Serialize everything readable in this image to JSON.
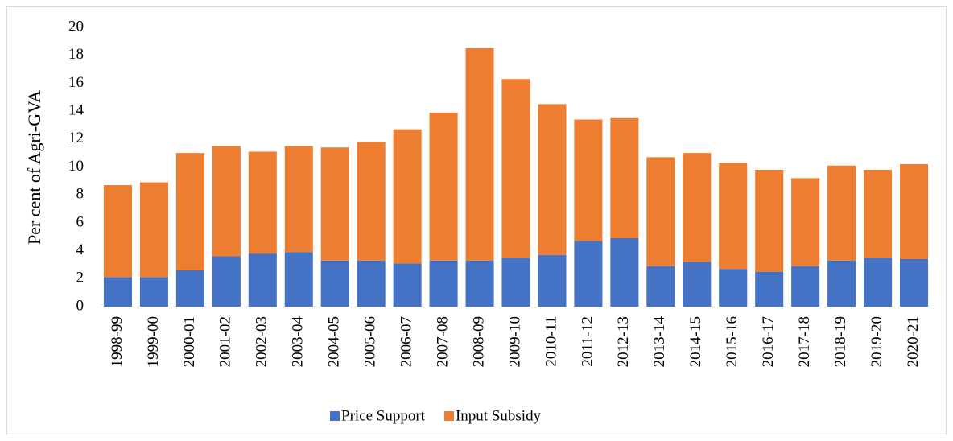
{
  "chart_data": {
    "type": "stacked_bar",
    "y_label": "Per cent of Agri-GVA",
    "categories": [
      "1998-99",
      "1999-00",
      "2000-01",
      "2001-02",
      "2002-03",
      "2003-04",
      "2004-05",
      "2005-06",
      "2006-07",
      "2007-08",
      "2008-09",
      "2009-10",
      "2010-11",
      "2011-12",
      "2012-13",
      "2013-14",
      "2014-15",
      "2015-16",
      "2016-17",
      "2017-18",
      "2018-19",
      "2019-20",
      "2020-21"
    ],
    "series": [
      {
        "name": "Price Support",
        "color": "#4472c4",
        "values": [
          2.1,
          2.1,
          2.6,
          3.6,
          3.8,
          3.9,
          3.3,
          3.3,
          3.1,
          3.3,
          3.3,
          3.5,
          3.7,
          4.7,
          4.9,
          2.9,
          3.2,
          2.7,
          2.5,
          2.9,
          3.3,
          3.5,
          3.4
        ]
      },
      {
        "name": "Input Subsidy",
        "color": "#ed7d31",
        "values": [
          6.6,
          6.8,
          8.4,
          7.9,
          7.3,
          7.6,
          8.1,
          8.5,
          9.6,
          10.6,
          15.2,
          12.8,
          10.8,
          8.7,
          8.6,
          7.8,
          7.8,
          7.6,
          7.3,
          6.3,
          6.8,
          6.3,
          6.8
        ]
      }
    ],
    "ylim": [
      0,
      20
    ],
    "yticks": [
      0,
      2,
      4,
      6,
      8,
      10,
      12,
      14,
      16,
      18,
      20
    ],
    "legend": "bottom",
    "grid": false
  }
}
